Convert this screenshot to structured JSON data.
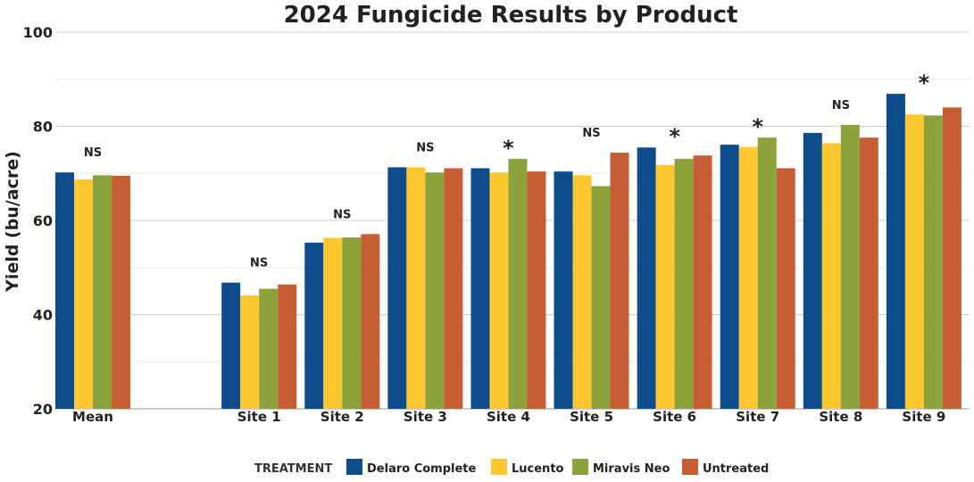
{
  "chart_data": {
    "type": "bar",
    "title": "2024 Fungicide Results by Product",
    "ylabel": "Yield (bu/acre)",
    "xlabel": "",
    "ylim": [
      20,
      100
    ],
    "yticks": [
      20,
      40,
      60,
      80,
      100
    ],
    "grid": true,
    "categories": [
      "Mean",
      "",
      "Site 1",
      "Site 2",
      "Site 3",
      "Site 4",
      "Site 5",
      "Site 6",
      "Site 7",
      "Site 8",
      "Site 9"
    ],
    "series": [
      {
        "name": "Delaro Complete",
        "color": "#0E4C8C",
        "values": [
          70.2,
          null,
          46.8,
          55.3,
          71.3,
          71.1,
          70.4,
          75.5,
          76.1,
          78.6,
          86.9
        ]
      },
      {
        "name": "Lucento",
        "color": "#FDC82F",
        "values": [
          68.7,
          null,
          44.1,
          56.3,
          71.3,
          70.2,
          69.6,
          71.8,
          75.6,
          76.4,
          82.5
        ]
      },
      {
        "name": "Miravis Neo",
        "color": "#8BA33A",
        "values": [
          69.6,
          null,
          45.5,
          56.4,
          70.2,
          73.1,
          67.3,
          73.1,
          77.6,
          80.3,
          82.3
        ]
      },
      {
        "name": "Untreated",
        "color": "#C75E33",
        "values": [
          69.5,
          null,
          46.4,
          57.1,
          71.1,
          70.4,
          74.4,
          73.8,
          71.1,
          77.6,
          84.0
        ]
      }
    ],
    "annotations": [
      "NS",
      "",
      "NS",
      "NS",
      "NS",
      "*",
      "NS",
      "*",
      "*",
      "NS",
      "*"
    ],
    "legend": {
      "title": "TREATMENT",
      "position": "bottom"
    }
  }
}
